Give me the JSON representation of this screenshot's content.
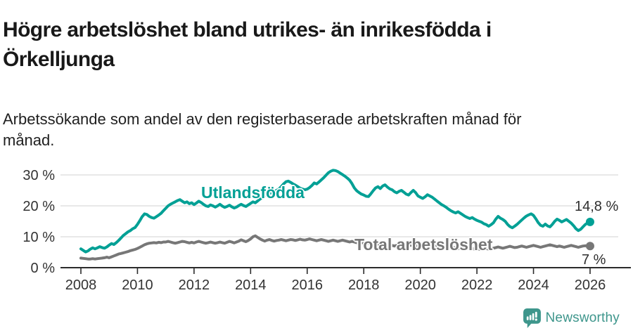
{
  "header": {
    "title": "Högre arbetslöshet bland utrikes- än inrikesfödda i Örkelljunga",
    "subtitle": "Arbetssökande som andel av den registerbaserade arbetskraften månad för månad."
  },
  "chart_data": {
    "type": "line",
    "title": "Högre arbetslöshet bland utrikes- än inrikesfödda i Örkelljunga",
    "subtitle": "Arbetssökande som andel av den registerbaserade arbetskraften månad för månad.",
    "unit": "%",
    "x_start_year": 2008,
    "points_per_month": 1,
    "xlim": [
      2008,
      2026.1
    ],
    "ylim": [
      0,
      33
    ],
    "grid": "horizontal",
    "legend_position": "inline-labels",
    "yticks": [
      {
        "value": 0,
        "label": "0 %"
      },
      {
        "value": 10,
        "label": "10 %"
      },
      {
        "value": 20,
        "label": "20 %"
      },
      {
        "value": 30,
        "label": "30 %"
      }
    ],
    "xticks": [
      "2008",
      "2010",
      "2012",
      "2014",
      "2016",
      "2018",
      "2020",
      "2022",
      "2024",
      "2026"
    ],
    "series": [
      {
        "name": "Utlandsfödda",
        "color": "#00a095",
        "end_label": "14,8 %",
        "end_value": 14.8,
        "values": [
          6.1,
          5.6,
          5.1,
          5.4,
          6.0,
          6.4,
          6.1,
          6.4,
          6.8,
          6.5,
          6.3,
          6.7,
          7.3,
          7.8,
          7.5,
          8.1,
          8.8,
          9.6,
          10.4,
          11.0,
          11.6,
          12.0,
          12.6,
          13.0,
          14.0,
          15.2,
          16.5,
          17.4,
          17.2,
          16.6,
          16.2,
          16.0,
          16.5,
          17.0,
          17.6,
          18.4,
          19.2,
          20.0,
          20.5,
          20.9,
          21.3,
          21.7,
          22.0,
          21.5,
          21.0,
          21.3,
          20.7,
          21.0,
          20.4,
          20.9,
          21.5,
          21.1,
          20.5,
          20.0,
          19.8,
          20.3,
          20.0,
          19.6,
          20.0,
          20.5,
          19.9,
          19.5,
          19.8,
          20.2,
          19.7,
          19.3,
          19.6,
          20.1,
          20.5,
          20.1,
          19.8,
          20.3,
          20.8,
          21.3,
          21.0,
          21.6,
          22.2,
          22.7,
          23.2,
          23.6,
          24.0,
          24.3,
          24.6,
          25.0,
          25.4,
          26.2,
          27.1,
          27.8,
          28.0,
          27.6,
          27.1,
          26.7,
          26.2,
          25.7,
          25.4,
          25.2,
          25.4,
          25.9,
          26.6,
          27.4,
          27.1,
          27.7,
          28.4,
          29.1,
          29.9,
          30.7,
          31.2,
          31.5,
          31.4,
          31.1,
          30.6,
          30.1,
          29.6,
          29.0,
          28.3,
          27.2,
          25.8,
          24.9,
          24.3,
          23.8,
          23.5,
          23.1,
          23.0,
          23.9,
          24.9,
          25.8,
          26.2,
          25.6,
          26.4,
          26.8,
          26.1,
          25.5,
          25.2,
          24.6,
          24.2,
          24.7,
          25.0,
          24.4,
          23.8,
          23.5,
          24.3,
          25.0,
          24.3,
          23.2,
          22.8,
          22.4,
          22.9,
          23.6,
          23.2,
          22.8,
          22.2,
          21.6,
          21.0,
          20.4,
          20.0,
          19.5,
          18.9,
          18.4,
          18.0,
          17.7,
          18.1,
          17.6,
          17.1,
          16.6,
          16.2,
          15.9,
          16.2,
          15.7,
          15.3,
          15.0,
          14.7,
          14.2,
          13.9,
          13.4,
          13.9,
          14.5,
          15.7,
          16.6,
          16.0,
          15.6,
          15.0,
          14.0,
          13.3,
          12.9,
          13.4,
          14.0,
          14.7,
          15.4,
          16.1,
          16.7,
          17.1,
          17.4,
          16.9,
          15.8,
          14.6,
          13.7,
          13.4,
          14.1,
          13.5,
          13.2,
          14.0,
          15.0,
          15.7,
          15.3,
          14.8,
          15.2,
          15.6,
          15.0,
          14.4,
          13.6,
          12.6,
          12.0,
          12.4,
          13.2,
          14.0,
          14.5,
          14.8
        ]
      },
      {
        "name": "Total arbetslöshet",
        "color": "#777777",
        "end_label": "7 %",
        "end_value": 7.0,
        "values": [
          3.1,
          3.0,
          2.9,
          2.8,
          2.8,
          2.9,
          2.8,
          2.9,
          3.0,
          3.1,
          3.2,
          3.4,
          3.2,
          3.5,
          3.8,
          4.1,
          4.4,
          4.6,
          4.8,
          5.0,
          5.2,
          5.5,
          5.7,
          5.9,
          6.2,
          6.6,
          7.0,
          7.4,
          7.7,
          7.9,
          8.0,
          8.1,
          8.0,
          8.2,
          8.1,
          8.3,
          8.3,
          8.5,
          8.3,
          8.1,
          7.9,
          8.1,
          8.3,
          8.5,
          8.4,
          8.2,
          8.0,
          8.2,
          8.0,
          8.3,
          8.5,
          8.3,
          8.1,
          7.9,
          8.1,
          8.3,
          8.1,
          7.9,
          8.1,
          8.3,
          8.1,
          7.9,
          8.2,
          8.5,
          8.3,
          8.0,
          8.3,
          8.6,
          9.0,
          8.7,
          8.4,
          8.8,
          9.3,
          10.0,
          10.3,
          9.8,
          9.3,
          8.9,
          8.6,
          8.9,
          9.1,
          8.8,
          8.6,
          8.8,
          8.9,
          9.1,
          8.9,
          8.7,
          8.9,
          9.1,
          9.0,
          8.8,
          9.0,
          9.2,
          9.0,
          8.9,
          9.1,
          9.3,
          9.1,
          8.9,
          8.7,
          8.9,
          9.1,
          8.9,
          8.7,
          8.5,
          8.7,
          8.9,
          8.7,
          8.5,
          8.7,
          8.9,
          8.7,
          8.5,
          8.3,
          8.5,
          8.3,
          8.1,
          7.9,
          8.1,
          7.9,
          7.7,
          7.9,
          8.1,
          7.9,
          7.7,
          7.5,
          7.7,
          7.9,
          7.7,
          7.5,
          7.3,
          7.2,
          7.0,
          7.2,
          7.4,
          7.2,
          7.0,
          6.9,
          7.1,
          7.3,
          7.1,
          6.9,
          7.1,
          7.3,
          7.5,
          7.8,
          8.0,
          7.8,
          7.6,
          7.4,
          7.2,
          7.0,
          6.8,
          6.6,
          6.8,
          6.6,
          6.8,
          6.6,
          6.4,
          6.2,
          6.4,
          6.2,
          6.0,
          6.2,
          6.4,
          6.2,
          6.0,
          6.2,
          6.0,
          5.8,
          6.0,
          6.2,
          6.0,
          6.1,
          6.3,
          6.5,
          6.7,
          6.5,
          6.3,
          6.5,
          6.7,
          6.9,
          6.7,
          6.5,
          6.6,
          6.8,
          7.0,
          6.8,
          6.6,
          6.8,
          7.0,
          7.2,
          7.0,
          6.8,
          6.6,
          6.8,
          7.0,
          7.2,
          7.4,
          7.2,
          7.0,
          6.8,
          7.0,
          6.8,
          6.6,
          6.8,
          7.0,
          7.2,
          7.0,
          6.8,
          6.6,
          6.8,
          7.0,
          7.1,
          7.0,
          7.0
        ]
      }
    ],
    "style": {
      "grid_color": "#d9d9d9",
      "axis_color": "#2b2b2b",
      "tick_label_color": "#333333",
      "end_label_color": "#2e2e2e"
    }
  },
  "footer": {
    "brand": "Newsworthy",
    "brand_color": "#3e968c",
    "logo_icon": "bar-chart-pin-icon"
  }
}
